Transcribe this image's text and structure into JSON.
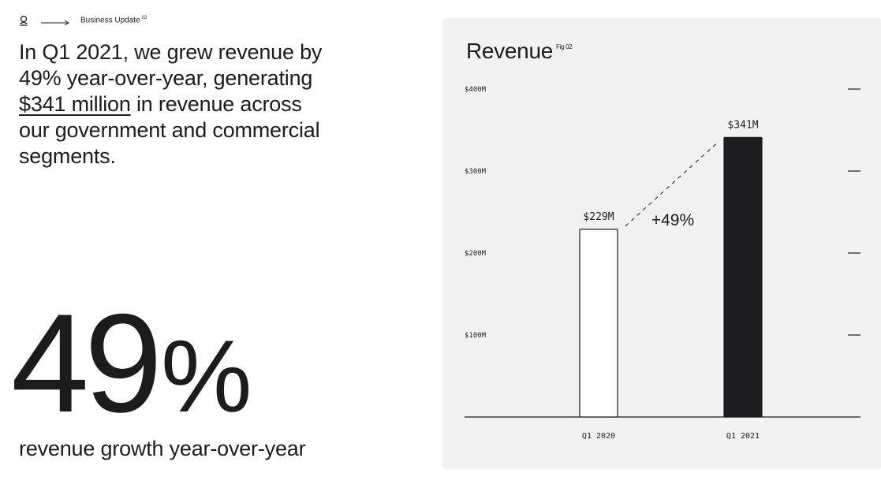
{
  "breadcrumb": {
    "label": "Business Update",
    "sup": "02"
  },
  "headline": {
    "pre": "In Q1 2021, we grew revenue by 49% year-over-year, generating ",
    "highlight": "$341 million",
    "post": " in revenue across our government and commercial segments."
  },
  "stat": {
    "value": "49",
    "unit": "%",
    "caption": "revenue growth year-over-year"
  },
  "chart_data": {
    "type": "bar",
    "title": "Revenue",
    "fig_label": "Fig 02",
    "categories": [
      "Q1 2020",
      "Q1 2021"
    ],
    "values": [
      229,
      341
    ],
    "value_labels": [
      "$229M",
      "$341M"
    ],
    "yticks": [
      100,
      200,
      300,
      400
    ],
    "ytick_labels": [
      "$100M",
      "$200M",
      "$300M",
      "$400M"
    ],
    "ylim": [
      0,
      400
    ],
    "annotation": "+49%",
    "xlabel": "",
    "ylabel": "",
    "grid": false,
    "colors": {
      "Q1 2020": "#ffffff",
      "Q1 2021": "#1c1c1e"
    }
  }
}
